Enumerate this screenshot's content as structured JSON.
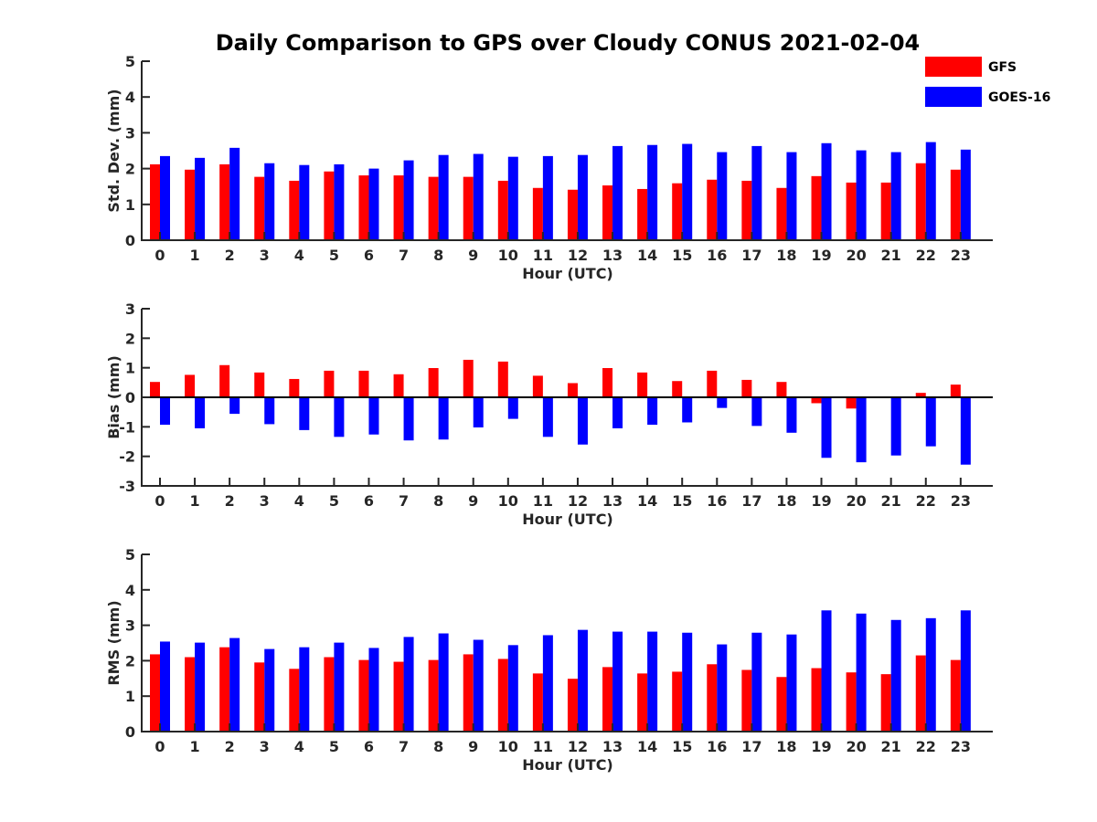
{
  "chart_data": {
    "title": "Daily Comparison to GPS over Cloudy CONUS 2021-02-04",
    "type": "bar",
    "colors": {
      "GFS": "#ff0000",
      "GOES-16": "#0000ff"
    },
    "legend": {
      "placement": "top-right",
      "entries": [
        {
          "name": "GFS",
          "color": "#ff0000"
        },
        {
          "name": "GOES-16",
          "color": "#0000ff"
        }
      ]
    },
    "panels": [
      {
        "ylabel": "Std. Dev. (mm)",
        "xlabel": "Hour (UTC)",
        "ylim": [
          0,
          5
        ],
        "yticks": [
          0,
          1,
          2,
          3,
          4,
          5
        ],
        "categories": [
          "0",
          "1",
          "2",
          "3",
          "4",
          "5",
          "6",
          "7",
          "8",
          "9",
          "10",
          "11",
          "12",
          "13",
          "14",
          "15",
          "16",
          "17",
          "18",
          "19",
          "20",
          "21",
          "22",
          "23"
        ],
        "series": [
          {
            "name": "GFS",
            "values": [
              2.12,
              1.97,
              2.12,
              1.77,
              1.66,
              1.92,
              1.81,
              1.81,
              1.77,
              1.77,
              1.66,
              1.46,
              1.41,
              1.53,
              1.43,
              1.59,
              1.69,
              1.66,
              1.46,
              1.79,
              1.61,
              1.61,
              2.15,
              1.97
            ]
          },
          {
            "name": "GOES-16",
            "values": [
              2.35,
              2.3,
              2.58,
              2.15,
              2.1,
              2.12,
              2.0,
              2.23,
              2.38,
              2.41,
              2.33,
              2.35,
              2.38,
              2.63,
              2.66,
              2.69,
              2.46,
              2.63,
              2.46,
              2.71,
              2.51,
              2.46,
              2.74,
              2.53
            ]
          }
        ]
      },
      {
        "ylabel": "Bias (mm)",
        "xlabel": "Hour (UTC)",
        "ylim": [
          -3,
          3
        ],
        "yticks": [
          -3,
          -2,
          -1,
          0,
          1,
          2,
          3
        ],
        "categories": [
          "0",
          "1",
          "2",
          "3",
          "4",
          "5",
          "6",
          "7",
          "8",
          "9",
          "10",
          "11",
          "12",
          "13",
          "14",
          "15",
          "16",
          "17",
          "18",
          "19",
          "20",
          "21",
          "22",
          "23"
        ],
        "series": [
          {
            "name": "GFS",
            "values": [
              0.52,
              0.76,
              1.09,
              0.84,
              0.62,
              0.9,
              0.9,
              0.78,
              0.99,
              1.27,
              1.21,
              0.73,
              0.48,
              0.99,
              0.84,
              0.55,
              0.9,
              0.59,
              0.52,
              -0.2,
              -0.38,
              0.0,
              0.15,
              0.43
            ]
          },
          {
            "name": "GOES-16",
            "values": [
              -0.93,
              -1.05,
              -0.56,
              -0.91,
              -1.11,
              -1.34,
              -1.26,
              -1.46,
              -1.43,
              -1.02,
              -0.73,
              -1.34,
              -1.6,
              -1.05,
              -0.93,
              -0.85,
              -0.36,
              -0.97,
              -1.2,
              -2.05,
              -2.2,
              -1.97,
              -1.66,
              -2.28
            ]
          }
        ]
      },
      {
        "ylabel": "RMS (mm)",
        "xlabel": "Hour (UTC)",
        "ylim": [
          0,
          5
        ],
        "yticks": [
          0,
          1,
          2,
          3,
          4,
          5
        ],
        "categories": [
          "0",
          "1",
          "2",
          "3",
          "4",
          "5",
          "6",
          "7",
          "8",
          "9",
          "10",
          "11",
          "12",
          "13",
          "14",
          "15",
          "16",
          "17",
          "18",
          "19",
          "20",
          "21",
          "22",
          "23"
        ],
        "series": [
          {
            "name": "GFS",
            "values": [
              2.18,
              2.1,
              2.38,
              1.95,
              1.77,
              2.1,
              2.02,
              1.97,
              2.02,
              2.18,
              2.05,
              1.64,
              1.49,
              1.82,
              1.64,
              1.69,
              1.9,
              1.74,
              1.54,
              1.79,
              1.67,
              1.62,
              2.15,
              2.02
            ]
          },
          {
            "name": "GOES-16",
            "values": [
              2.54,
              2.51,
              2.64,
              2.33,
              2.38,
              2.51,
              2.36,
              2.67,
              2.77,
              2.59,
              2.44,
              2.72,
              2.87,
              2.82,
              2.82,
              2.79,
              2.46,
              2.79,
              2.74,
              3.42,
              3.33,
              3.15,
              3.2,
              3.42
            ]
          }
        ]
      }
    ]
  }
}
